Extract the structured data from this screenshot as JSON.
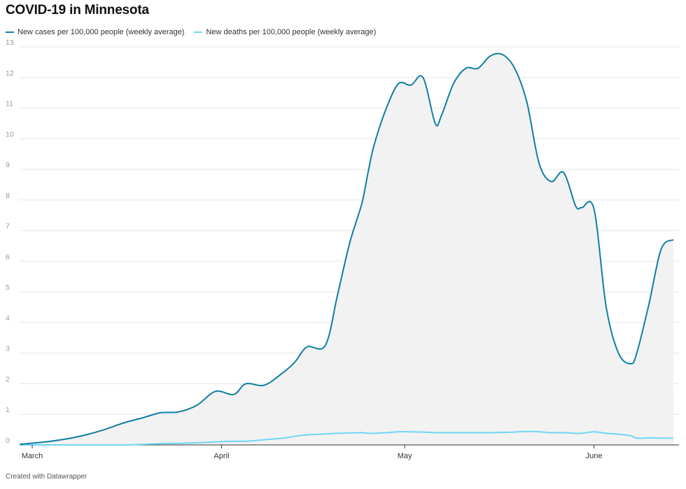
{
  "header": {
    "title": "COVID-19 in Minnesota"
  },
  "footer": {
    "credit": "Created with Datawrapper"
  },
  "colors": {
    "cases": "#0f7ea3",
    "deaths": "#6fd6f5",
    "area": "#f2f2f2",
    "grid": "#e6e6e6"
  },
  "chart_data": {
    "type": "area",
    "title": "COVID-19 in Minnesota",
    "xlabel": "",
    "ylabel": "",
    "ylim": [
      0,
      13
    ],
    "yticks": [
      0,
      1,
      2,
      3,
      4,
      5,
      6,
      7,
      8,
      9,
      10,
      11,
      12,
      13
    ],
    "xlim": [
      "2020-03-01",
      "2020-06-14"
    ],
    "xticks": [
      {
        "date": "2020-03-01",
        "label": "March"
      },
      {
        "date": "2020-04-01",
        "label": "April"
      },
      {
        "date": "2020-05-01",
        "label": "May"
      },
      {
        "date": "2020-06-01",
        "label": "June"
      }
    ],
    "grid": true,
    "legend_position": "top-left",
    "x": [
      "2020-02-28",
      "2020-03-04",
      "2020-03-08",
      "2020-03-12",
      "2020-03-16",
      "2020-03-19",
      "2020-03-22",
      "2020-03-25",
      "2020-03-28",
      "2020-03-31",
      "2020-04-03",
      "2020-04-05",
      "2020-04-08",
      "2020-04-11",
      "2020-04-13",
      "2020-04-15",
      "2020-04-18",
      "2020-04-20",
      "2020-04-22",
      "2020-04-24",
      "2020-04-25",
      "2020-04-26",
      "2020-04-28",
      "2020-04-30",
      "2020-05-02",
      "2020-05-04",
      "2020-05-06",
      "2020-05-07",
      "2020-05-09",
      "2020-05-11",
      "2020-05-13",
      "2020-05-15",
      "2020-05-17",
      "2020-05-19",
      "2020-05-21",
      "2020-05-23",
      "2020-05-25",
      "2020-05-27",
      "2020-05-29",
      "2020-05-30",
      "2020-06-01",
      "2020-06-03",
      "2020-06-05",
      "2020-06-07",
      "2020-06-08",
      "2020-06-10",
      "2020-06-12",
      "2020-06-14"
    ],
    "series": [
      {
        "name": "New cases per 100,000 people (weekly average)",
        "values": [
          0.02,
          0.12,
          0.25,
          0.45,
          0.72,
          0.88,
          1.05,
          1.08,
          1.3,
          1.75,
          1.65,
          2.0,
          1.95,
          2.35,
          2.7,
          3.2,
          3.25,
          4.9,
          6.6,
          7.9,
          8.9,
          9.8,
          11.0,
          11.8,
          11.75,
          12.0,
          10.5,
          10.75,
          11.8,
          12.3,
          12.3,
          12.7,
          12.75,
          12.3,
          11.2,
          9.2,
          8.6,
          8.9,
          7.8,
          7.75,
          7.7,
          4.5,
          3.0,
          2.65,
          3.0,
          4.6,
          6.4,
          6.7
        ]
      },
      {
        "name": "New deaths per 100,000 people (weekly average)",
        "values": [
          0,
          0,
          0,
          0,
          0,
          0.02,
          0.04,
          0.05,
          0.07,
          0.1,
          0.12,
          0.12,
          0.17,
          0.22,
          0.28,
          0.33,
          0.36,
          0.38,
          0.39,
          0.4,
          0.38,
          0.38,
          0.4,
          0.43,
          0.43,
          0.42,
          0.4,
          0.4,
          0.4,
          0.4,
          0.4,
          0.4,
          0.41,
          0.42,
          0.44,
          0.43,
          0.4,
          0.4,
          0.38,
          0.38,
          0.43,
          0.38,
          0.35,
          0.3,
          0.22,
          0.23,
          0.22,
          0.22
        ]
      }
    ]
  }
}
